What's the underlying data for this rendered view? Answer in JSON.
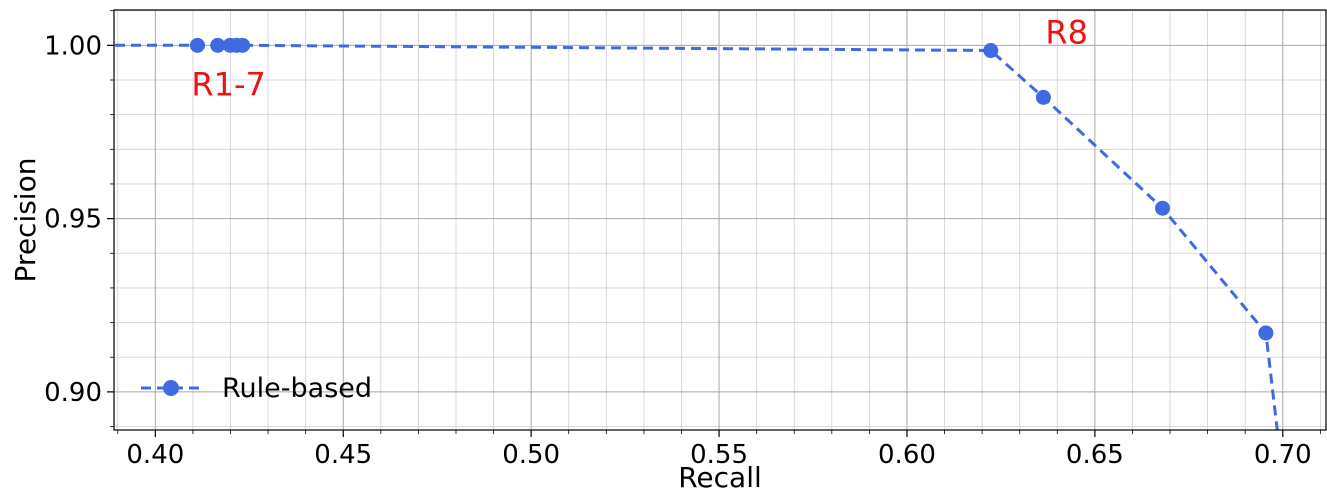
{
  "chart_data": {
    "type": "line",
    "title": "",
    "xlabel": "Recall",
    "ylabel": "Precision",
    "xlim": [
      0.389,
      0.7115
    ],
    "ylim": [
      0.889,
      1.0102
    ],
    "x_major_ticks": [
      0.4,
      0.45,
      0.5,
      0.55,
      0.6,
      0.65,
      0.7
    ],
    "x_tick_labels": [
      "0.40",
      "0.45",
      "0.50",
      "0.55",
      "0.60",
      "0.65",
      "0.70"
    ],
    "y_major_ticks": [
      0.9,
      0.95,
      1.0
    ],
    "y_tick_labels": [
      "0.90",
      "0.95",
      "1.00"
    ],
    "grid": true,
    "minor_grid": true,
    "legend_position": "lower-left",
    "series": [
      {
        "name": "Rule-based",
        "color": "#4169E1",
        "line_style": "dashed",
        "marker": "circle",
        "x": [
          0.385,
          0.4112,
          0.4166,
          0.4199,
          0.4216,
          0.4232,
          0.6223,
          0.6363,
          0.668,
          0.6955,
          0.6995
        ],
        "y": [
          1.0,
          1.0,
          1.0,
          1.0,
          1.0,
          1.0,
          0.9985,
          0.985,
          0.953,
          0.917,
          0.88
        ],
        "marker_indices": [
          1,
          2,
          3,
          4,
          5,
          6,
          7,
          8,
          9
        ]
      }
    ],
    "annotations": [
      {
        "text": "R1-7",
        "x": 0.4195,
        "y": 0.9855,
        "color": "#EE1111"
      },
      {
        "text": "R8",
        "x": 0.6425,
        "y": 1.0005,
        "color": "#EE1111"
      }
    ]
  }
}
